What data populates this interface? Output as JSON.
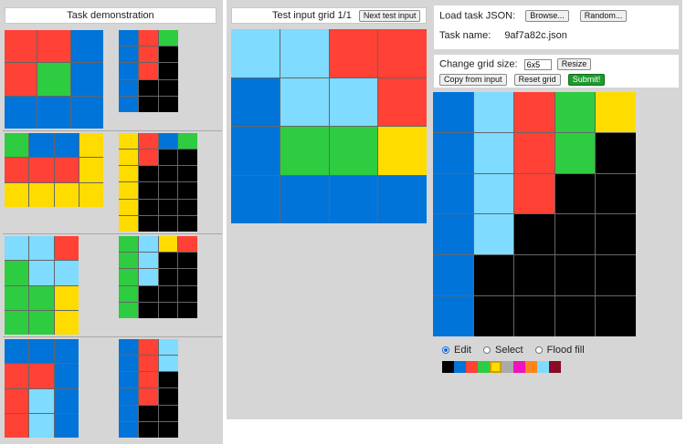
{
  "colors": [
    "#000000",
    "#0074d9",
    "#ff4136",
    "#2ecc40",
    "#ffdc00",
    "#aaaaaa",
    "#f012be",
    "#ff851b",
    "#7fdbff",
    "#870c25"
  ],
  "demo": {
    "title": "Task demonstration",
    "pairs": [
      {
        "input": [
          [
            2,
            2,
            1
          ],
          [
            2,
            3,
            1
          ],
          [
            1,
            1,
            1
          ]
        ],
        "output": [
          [
            1,
            2,
            3
          ],
          [
            1,
            2,
            0
          ],
          [
            1,
            2,
            0
          ],
          [
            1,
            0,
            0
          ],
          [
            1,
            0,
            0
          ]
        ]
      },
      {
        "input": [
          [
            3,
            1,
            1,
            4
          ],
          [
            2,
            2,
            2,
            4
          ],
          [
            4,
            4,
            4,
            4
          ]
        ],
        "output": [
          [
            4,
            2,
            1,
            3
          ],
          [
            4,
            2,
            0,
            0
          ],
          [
            4,
            0,
            0,
            0
          ],
          [
            4,
            0,
            0,
            0
          ],
          [
            4,
            0,
            0,
            0
          ],
          [
            4,
            0,
            0,
            0
          ]
        ]
      },
      {
        "input": [
          [
            8,
            8,
            2
          ],
          [
            3,
            8,
            8
          ],
          [
            3,
            3,
            4
          ],
          [
            3,
            3,
            4
          ]
        ],
        "output": [
          [
            3,
            8,
            4,
            2
          ],
          [
            3,
            8,
            0,
            0
          ],
          [
            3,
            8,
            0,
            0
          ],
          [
            3,
            0,
            0,
            0
          ],
          [
            3,
            0,
            0,
            0
          ]
        ]
      },
      {
        "input": [
          [
            1,
            1,
            1
          ],
          [
            2,
            2,
            1
          ],
          [
            2,
            8,
            1
          ],
          [
            2,
            8,
            1
          ]
        ],
        "output": [
          [
            1,
            2,
            8
          ],
          [
            1,
            2,
            8
          ],
          [
            1,
            2,
            0
          ],
          [
            1,
            2,
            0
          ],
          [
            1,
            0,
            0
          ],
          [
            1,
            0,
            0
          ]
        ]
      }
    ]
  },
  "test": {
    "title": "Test input grid 1/1",
    "next_label": "Next test input",
    "grid": [
      [
        8,
        8,
        2,
        2
      ],
      [
        1,
        8,
        8,
        2
      ],
      [
        1,
        3,
        3,
        4
      ],
      [
        1,
        1,
        1,
        1
      ]
    ]
  },
  "load": {
    "label": "Load task JSON:",
    "browse_label": "Browse...",
    "random_label": "Random...",
    "task_name_label": "Task name:",
    "task_name": "9af7a82c.json"
  },
  "controls": {
    "resize_label": "Change grid size:",
    "size_value": "6x5",
    "resize_button": "Resize",
    "copy_button": "Copy from input",
    "reset_button": "Reset grid",
    "submit_button": "Submit!"
  },
  "output": {
    "grid": [
      [
        1,
        8,
        2,
        3,
        4
      ],
      [
        1,
        8,
        2,
        3,
        0
      ],
      [
        1,
        8,
        2,
        0,
        0
      ],
      [
        1,
        8,
        0,
        0,
        0
      ],
      [
        1,
        0,
        0,
        0,
        0
      ],
      [
        1,
        0,
        0,
        0,
        0
      ]
    ]
  },
  "modes": {
    "edit_label": "Edit",
    "select_label": "Select",
    "flood_label": "Flood fill",
    "selected": "edit"
  },
  "palette_selected": 4
}
